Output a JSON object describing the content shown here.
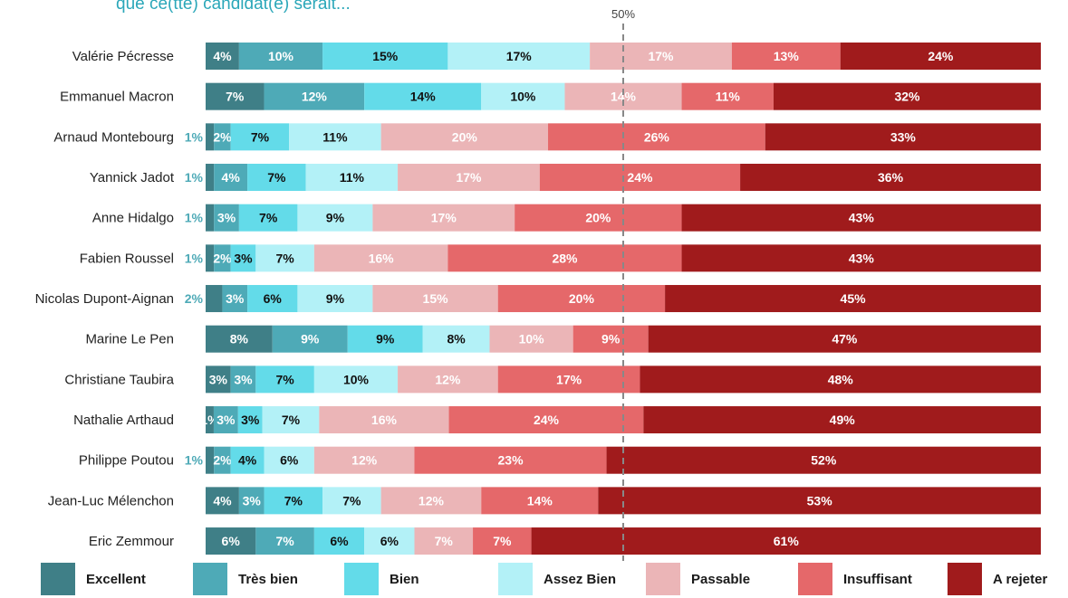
{
  "subtitle": "que ce(tte) candidat(e) serait...",
  "chart_data": {
    "type": "bar",
    "orientation": "horizontal",
    "stacked": true,
    "reference_line": {
      "value": 50,
      "label": "50%"
    },
    "xlim": [
      0,
      100
    ],
    "categories": [
      "Valérie Pécresse",
      "Emmanuel Macron",
      "Arnaud Montebourg",
      "Yannick Jadot",
      "Anne Hidalgo",
      "Fabien Roussel",
      "Nicolas Dupont-Aignan",
      "Marine Le Pen",
      "Christiane Taubira",
      "Nathalie Arthaud",
      "Philippe Poutou",
      "Jean-Luc Mélenchon",
      "Eric Zemmour"
    ],
    "series": [
      {
        "name": "Excellent",
        "color": "#3f7f87",
        "label_color": "#ffffff",
        "values": [
          4,
          7,
          1,
          1,
          1,
          1,
          2,
          8,
          3,
          1,
          1,
          4,
          6
        ]
      },
      {
        "name": "Très bien",
        "color": "#4eaab7",
        "label_color": "#ffffff",
        "values": [
          10,
          12,
          2,
          4,
          3,
          2,
          3,
          9,
          3,
          3,
          2,
          3,
          7
        ]
      },
      {
        "name": "Bien",
        "color": "#63dbe9",
        "label_color": "#111111",
        "values": [
          15,
          14,
          7,
          7,
          7,
          3,
          6,
          9,
          7,
          3,
          4,
          7,
          6
        ]
      },
      {
        "name": "Assez Bien",
        "color": "#b3f1f7",
        "label_color": "#111111",
        "values": [
          17,
          10,
          11,
          11,
          9,
          7,
          9,
          8,
          10,
          7,
          6,
          7,
          6
        ]
      },
      {
        "name": "Passable",
        "color": "#ebb5b7",
        "label_color": "#ffffff",
        "values": [
          17,
          14,
          20,
          17,
          17,
          16,
          15,
          10,
          12,
          16,
          12,
          12,
          7
        ]
      },
      {
        "name": "Insuffisant",
        "color": "#e5686a",
        "label_color": "#ffffff",
        "values": [
          13,
          11,
          26,
          24,
          20,
          28,
          20,
          9,
          17,
          24,
          23,
          14,
          7
        ]
      },
      {
        "name": "A rejeter",
        "color": "#a01b1c",
        "label_color": "#ffffff",
        "values": [
          24,
          32,
          33,
          36,
          43,
          43,
          45,
          47,
          48,
          49,
          52,
          53,
          61
        ]
      }
    ],
    "outside_labels": {
      "Arnaud Montebourg": "1%",
      "Yannick Jadot": "1%",
      "Anne Hidalgo": "1%",
      "Fabien Roussel": "1%",
      "Nicolas Dupont-Aignan": "2%",
      "Philippe Poutou": "1%"
    }
  }
}
